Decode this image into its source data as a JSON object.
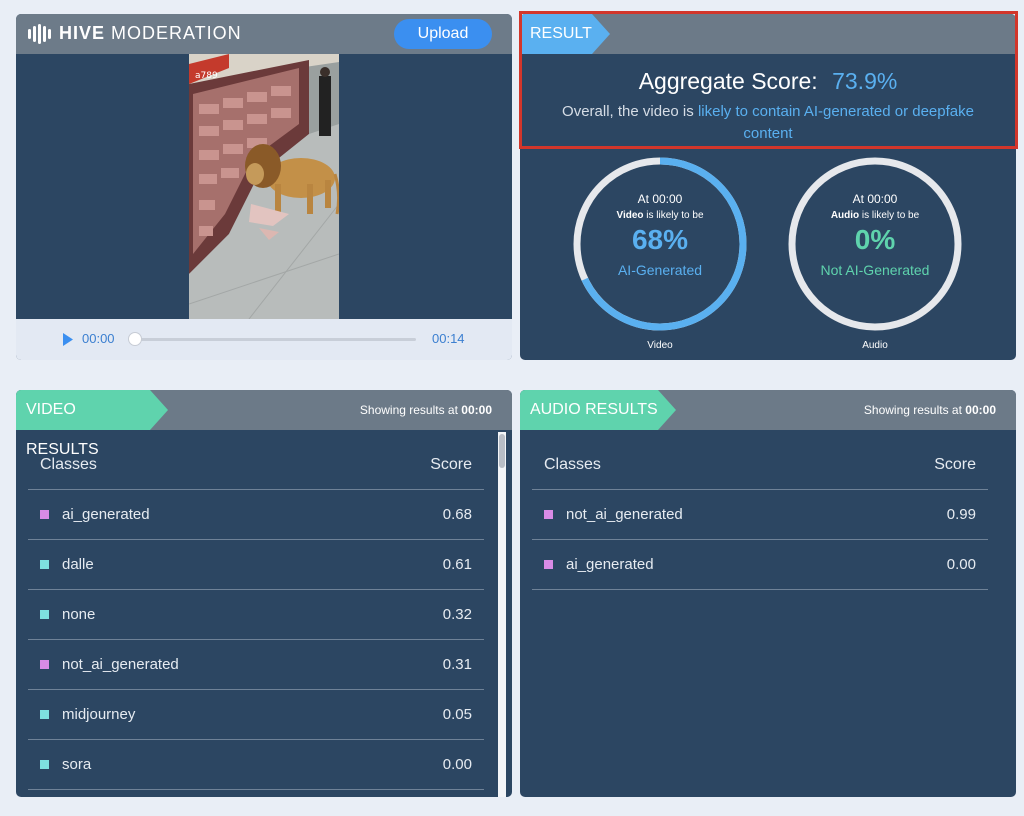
{
  "brand": {
    "bold": "HIVE",
    "light": "MODERATION"
  },
  "upload_label": "Upload",
  "player": {
    "current_time": "00:00",
    "duration": "00:14",
    "progress": 0.0,
    "sign_text": "a789"
  },
  "result": {
    "tag": "RESULT",
    "aggregate_label": "Aggregate Score:",
    "aggregate_value": "73.9%",
    "desc_prefix": "Overall, the video is",
    "desc_highlight": "likely to contain AI-generated or deepfake content",
    "gauges": [
      {
        "at": "At 00:00",
        "subject": "Video",
        "sub_rest": " is likely to be",
        "percent": "68%",
        "fraction": 0.68,
        "label": "AI-Generated",
        "caption": "Video",
        "color": "#5ab0f0"
      },
      {
        "at": "At 00:00",
        "subject": "Audio",
        "sub_rest": " is likely to be",
        "percent": "0%",
        "fraction": 0.0,
        "label": "Not AI-Generated",
        "caption": "Audio",
        "color": "#5fd3ad"
      }
    ]
  },
  "video_results": {
    "tag": "VIDEO RESULTS",
    "showing_prefix": "Showing results at",
    "showing_time": "00:00",
    "col_classes": "Classes",
    "col_score": "Score",
    "rows": [
      {
        "name": "ai_generated",
        "score": "0.68",
        "color": "#d98be6"
      },
      {
        "name": "dalle",
        "score": "0.61",
        "color": "#7ee0e0"
      },
      {
        "name": "none",
        "score": "0.32",
        "color": "#7ee0e0"
      },
      {
        "name": "not_ai_generated",
        "score": "0.31",
        "color": "#d98be6"
      },
      {
        "name": "midjourney",
        "score": "0.05",
        "color": "#7ee0e0"
      },
      {
        "name": "sora",
        "score": "0.00",
        "color": "#7ee0e0"
      }
    ]
  },
  "audio_results": {
    "tag": "AUDIO RESULTS",
    "showing_prefix": "Showing results at",
    "showing_time": "00:00",
    "col_classes": "Classes",
    "col_score": "Score",
    "rows": [
      {
        "name": "not_ai_generated",
        "score": "0.99",
        "color": "#d98be6"
      },
      {
        "name": "ai_generated",
        "score": "0.00",
        "color": "#d98be6"
      }
    ]
  },
  "colors": {
    "accent_blue": "#5ab0f0",
    "accent_green": "#5fd3ad",
    "panel": "#2c4662",
    "highlight": "#d2362b"
  }
}
